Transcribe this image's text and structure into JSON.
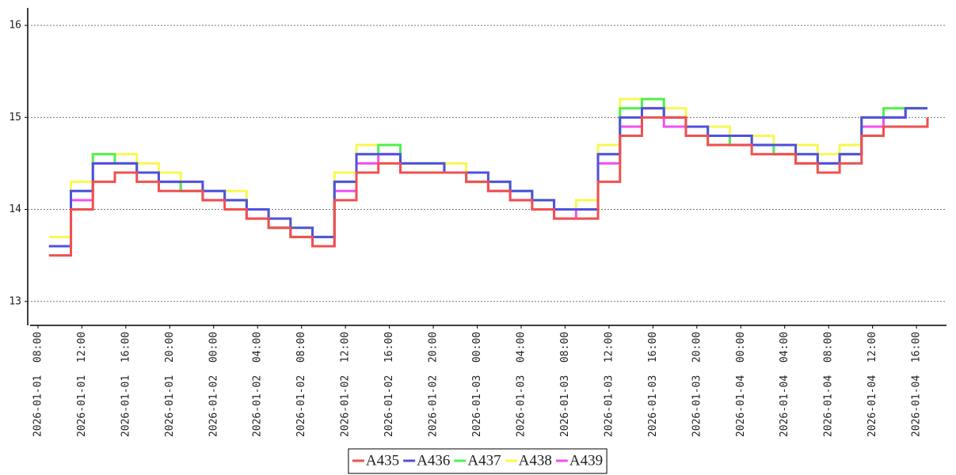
{
  "chart_data": {
    "type": "step",
    "x": [
      "2026-01-01 09:00",
      "2026-01-01 11:00",
      "2026-01-01 13:00",
      "2026-01-01 15:00",
      "2026-01-01 17:00",
      "2026-01-01 19:00",
      "2026-01-01 21:00",
      "2026-01-01 23:00",
      "2026-01-02 01:00",
      "2026-01-02 03:00",
      "2026-01-02 05:00",
      "2026-01-02 07:00",
      "2026-01-02 09:00",
      "2026-01-02 11:00",
      "2026-01-02 13:00",
      "2026-01-02 15:00",
      "2026-01-02 17:00",
      "2026-01-02 19:00",
      "2026-01-02 21:00",
      "2026-01-02 23:00",
      "2026-01-03 01:00",
      "2026-01-03 03:00",
      "2026-01-03 05:00",
      "2026-01-03 07:00",
      "2026-01-03 09:00",
      "2026-01-03 11:00",
      "2026-01-03 13:00",
      "2026-01-03 15:00",
      "2026-01-03 17:00",
      "2026-01-03 19:00",
      "2026-01-03 21:00",
      "2026-01-03 23:00",
      "2026-01-04 01:00",
      "2026-01-04 03:00",
      "2026-01-04 05:00",
      "2026-01-04 07:00",
      "2026-01-04 09:00",
      "2026-01-04 11:00",
      "2026-01-04 13:00",
      "2026-01-04 15:00",
      "2026-01-04 17:00"
    ],
    "series": [
      {
        "name": "A435",
        "color": "#f05050",
        "values": [
          13.5,
          14.0,
          14.3,
          14.4,
          14.3,
          14.2,
          14.2,
          14.1,
          14.0,
          13.9,
          13.8,
          13.7,
          13.6,
          14.1,
          14.4,
          14.5,
          14.4,
          14.4,
          14.4,
          14.3,
          14.2,
          14.1,
          14.0,
          13.9,
          13.9,
          14.3,
          14.8,
          15.0,
          15.0,
          14.8,
          14.7,
          14.7,
          14.6,
          14.6,
          14.5,
          14.4,
          14.5,
          14.8,
          14.9,
          14.9,
          15.0
        ]
      },
      {
        "name": "A436",
        "color": "#5050e0",
        "values": [
          13.6,
          14.2,
          14.5,
          14.5,
          14.4,
          14.3,
          14.3,
          14.2,
          14.1,
          14.0,
          13.9,
          13.8,
          13.7,
          14.3,
          14.6,
          14.6,
          14.5,
          14.5,
          14.4,
          14.4,
          14.3,
          14.2,
          14.1,
          14.0,
          14.0,
          14.6,
          15.0,
          15.1,
          15.0,
          14.9,
          14.8,
          14.8,
          14.7,
          14.7,
          14.6,
          14.5,
          14.6,
          15.0,
          15.0,
          15.1,
          15.1
        ]
      },
      {
        "name": "A437",
        "color": "#50f050",
        "values": [
          13.6,
          14.2,
          14.6,
          14.5,
          14.4,
          14.3,
          14.2,
          14.2,
          14.1,
          14.0,
          13.8,
          13.7,
          13.7,
          14.3,
          14.6,
          14.7,
          14.5,
          14.5,
          14.4,
          14.3,
          14.3,
          14.2,
          14.1,
          14.0,
          14.0,
          14.6,
          15.1,
          15.2,
          15.0,
          14.9,
          14.7,
          14.8,
          14.7,
          14.6,
          14.6,
          14.5,
          14.6,
          15.0,
          15.1,
          15.1,
          15.1
        ]
      },
      {
        "name": "A438",
        "color": "#f8f850",
        "values": [
          13.7,
          14.3,
          14.6,
          14.6,
          14.5,
          14.4,
          14.3,
          14.2,
          14.2,
          14.0,
          13.9,
          13.8,
          13.7,
          14.4,
          14.7,
          14.7,
          14.5,
          14.5,
          14.5,
          14.4,
          14.3,
          14.2,
          14.1,
          14.0,
          14.1,
          14.7,
          15.2,
          15.2,
          15.1,
          14.9,
          14.9,
          14.8,
          14.8,
          14.7,
          14.7,
          14.6,
          14.7,
          15.0,
          15.1,
          15.1,
          15.1
        ]
      },
      {
        "name": "A439",
        "color": "#f050f0",
        "values": [
          13.6,
          14.1,
          14.5,
          14.5,
          14.4,
          14.3,
          14.2,
          14.1,
          14.1,
          13.9,
          13.8,
          13.7,
          13.6,
          14.2,
          14.5,
          14.6,
          14.4,
          14.4,
          14.4,
          14.3,
          14.2,
          14.1,
          14.0,
          13.9,
          14.0,
          14.5,
          14.9,
          15.1,
          14.9,
          14.8,
          14.8,
          14.7,
          14.7,
          14.6,
          14.5,
          14.5,
          14.6,
          14.9,
          15.0,
          15.1,
          15.1
        ]
      }
    ],
    "xlim": [
      "2026-01-01 07:04",
      "2026-01-04 18:44"
    ],
    "xticks": [
      {
        "value": "2026-01-01 08:00",
        "label": "2026-01-01  08:00"
      },
      {
        "value": "2026-01-01 12:00",
        "label": "2026-01-01  12:00"
      },
      {
        "value": "2026-01-01 16:00",
        "label": "2026-01-01  16:00"
      },
      {
        "value": "2026-01-01 20:00",
        "label": "2026-01-01  20:00"
      },
      {
        "value": "2026-01-02 00:00",
        "label": "2026-01-02  00:00"
      },
      {
        "value": "2026-01-02 04:00",
        "label": "2026-01-02  04:00"
      },
      {
        "value": "2026-01-02 08:00",
        "label": "2026-01-02  08:00"
      },
      {
        "value": "2026-01-02 12:00",
        "label": "2026-01-02  12:00"
      },
      {
        "value": "2026-01-02 16:00",
        "label": "2026-01-02  16:00"
      },
      {
        "value": "2026-01-02 20:00",
        "label": "2026-01-02  20:00"
      },
      {
        "value": "2026-01-03 00:00",
        "label": "2026-01-03  00:00"
      },
      {
        "value": "2026-01-03 04:00",
        "label": "2026-01-03  04:00"
      },
      {
        "value": "2026-01-03 08:00",
        "label": "2026-01-03  08:00"
      },
      {
        "value": "2026-01-03 12:00",
        "label": "2026-01-03  12:00"
      },
      {
        "value": "2026-01-03 16:00",
        "label": "2026-01-03  16:00"
      },
      {
        "value": "2026-01-03 20:00",
        "label": "2026-01-03  20:00"
      },
      {
        "value": "2026-01-04 00:00",
        "label": "2026-01-04  00:00"
      },
      {
        "value": "2026-01-04 04:00",
        "label": "2026-01-04  04:00"
      },
      {
        "value": "2026-01-04 08:00",
        "label": "2026-01-04  08:00"
      },
      {
        "value": "2026-01-04 12:00",
        "label": "2026-01-04  12:00"
      },
      {
        "value": "2026-01-04 16:00",
        "label": "2026-01-04  16:00"
      }
    ],
    "ylim": [
      12.74,
      16.19
    ],
    "yticks": [
      13,
      14,
      15,
      16
    ],
    "grid": true,
    "legend": "bottom"
  }
}
